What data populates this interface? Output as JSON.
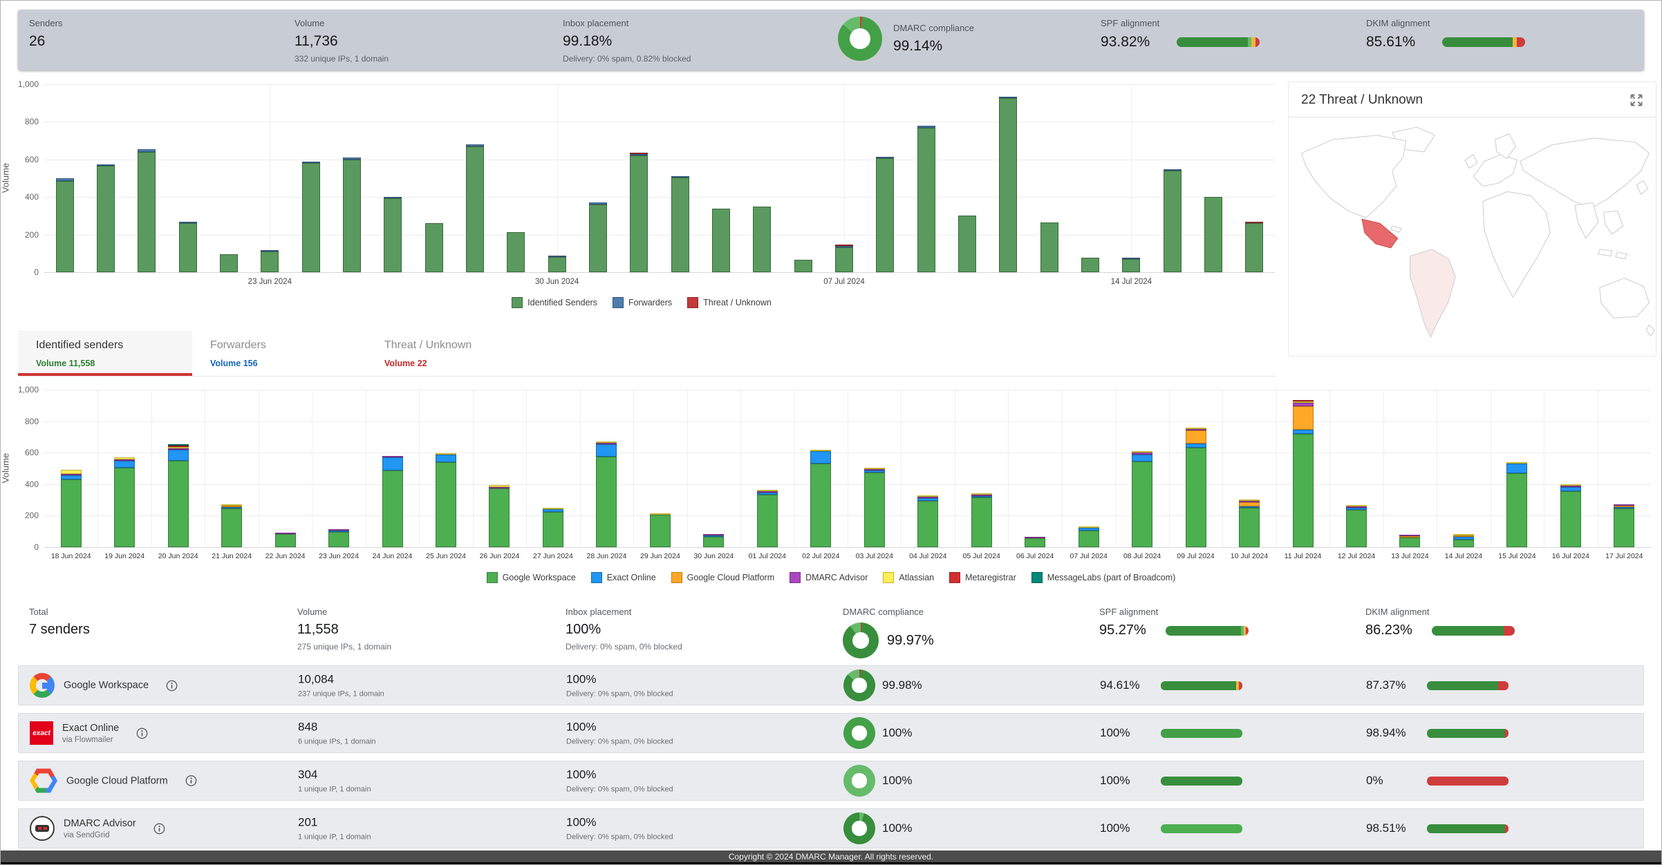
{
  "colors": {
    "green": "#388e3c",
    "green2": "#43a047",
    "lightgreen": "#66bb6a",
    "bright": "#4caf50",
    "yellow": "#f2b63c",
    "red": "#cf3c3c",
    "accent_red": "#cf3434"
  },
  "top_stats": {
    "senders": {
      "label": "Senders",
      "value": "26"
    },
    "volume": {
      "label": "Volume",
      "value": "11,736",
      "sub": "332 unique IPs, 1 domain"
    },
    "inbox": {
      "label": "Inbox placement",
      "value": "99.18%",
      "sub": "Delivery: 0% spam, 0.82% blocked"
    },
    "dmarc": {
      "label": "DMARC compliance",
      "value": "99.14%",
      "donut": [
        [
          "red",
          1.5
        ],
        [
          "green2",
          84.5
        ],
        [
          "lightgreen",
          14
        ]
      ]
    },
    "spf": {
      "label": "SPF alignment",
      "value": "93.82%",
      "bar": [
        [
          "green",
          86
        ],
        [
          "lightgreen",
          4
        ],
        [
          "yellow",
          5
        ],
        [
          "red",
          5
        ]
      ]
    },
    "dkim": {
      "label": "DKIM alignment",
      "value": "85.61%",
      "bar": [
        [
          "green",
          85
        ],
        [
          "yellow",
          5
        ],
        [
          "red",
          10
        ]
      ]
    }
  },
  "map_panel": {
    "title": "22 Threat / Unknown"
  },
  "tabs": [
    {
      "label": "Identified senders",
      "volume": "Volume 11,558",
      "tone": "green",
      "active": true
    },
    {
      "label": "Forwarders",
      "volume": "Volume 156",
      "tone": "blue",
      "active": false
    },
    {
      "label": "Threat / Unknown",
      "volume": "Volume 22",
      "tone": "red",
      "active": false
    }
  ],
  "chart_data": [
    {
      "type": "bar",
      "stacked": true,
      "title": "",
      "xlabel": "",
      "ylabel": "Volume",
      "ylim": [
        0,
        1000
      ],
      "yticks": [
        0,
        200,
        400,
        600,
        800,
        1000
      ],
      "grid": true,
      "legend_position": "bottom",
      "categories": [
        "18 Jun 2024",
        "19 Jun 2024",
        "20 Jun 2024",
        "21 Jun 2024",
        "22 Jun 2024",
        "23 Jun 2024",
        "24 Jun 2024",
        "25 Jun 2024",
        "26 Jun 2024",
        "27 Jun 2024",
        "28 Jun 2024",
        "29 Jun 2024",
        "30 Jun 2024",
        "01 Jul 2024",
        "02 Jul 2024",
        "03 Jul 2024",
        "04 Jul 2024",
        "05 Jul 2024",
        "06 Jul 2024",
        "07 Jul 2024",
        "08 Jul 2024",
        "09 Jul 2024",
        "10 Jul 2024",
        "11 Jul 2024",
        "12 Jul 2024",
        "13 Jul 2024",
        "14 Jul 2024",
        "15 Jul 2024",
        "16 Jul 2024",
        "17 Jul 2024"
      ],
      "xtick_label_indices": [
        5,
        12,
        19,
        26
      ],
      "xtick_labels_shown": [
        "23 Jun 2024",
        "30 Jun 2024",
        "07 Jul 2024",
        "14 Jul 2024"
      ],
      "series": [
        {
          "name": "Identified Senders",
          "color": "#5a9a5e",
          "edge": "#3a683e",
          "values": [
            485,
            565,
            640,
            262,
            95,
            112,
            580,
            600,
            395,
            260,
            670,
            215,
            82,
            362,
            620,
            502,
            340,
            350,
            65,
            132,
            605,
            770,
            300,
            928,
            265,
            78,
            70,
            540,
            400,
            262
          ]
        },
        {
          "name": "Forwarders",
          "color": "#4d7fae",
          "edge": "#31567b",
          "values": [
            15,
            10,
            15,
            4,
            0,
            6,
            10,
            12,
            7,
            0,
            10,
            0,
            6,
            8,
            5,
            8,
            0,
            0,
            0,
            5,
            7,
            8,
            0,
            7,
            0,
            0,
            5,
            8,
            0,
            0
          ]
        },
        {
          "name": "Threat / Unknown",
          "color": "#c23a3a",
          "edge": "#8c2525",
          "values": [
            0,
            0,
            0,
            0,
            0,
            0,
            0,
            0,
            0,
            0,
            0,
            0,
            0,
            0,
            8,
            0,
            0,
            0,
            0,
            6,
            0,
            0,
            0,
            0,
            0,
            0,
            0,
            0,
            0,
            8
          ]
        }
      ]
    },
    {
      "type": "bar",
      "stacked": true,
      "title": "",
      "xlabel": "",
      "ylabel": "Volume",
      "ylim": [
        0,
        1000
      ],
      "yticks": [
        0,
        200,
        400,
        600,
        800,
        1000
      ],
      "grid": true,
      "legend_position": "bottom",
      "categories": [
        "18 Jun 2024",
        "19 Jun 2024",
        "20 Jun 2024",
        "21 Jun 2024",
        "22 Jun 2024",
        "23 Jun 2024",
        "24 Jun 2024",
        "25 Jun 2024",
        "26 Jun 2024",
        "27 Jun 2024",
        "28 Jun 2024",
        "29 Jun 2024",
        "30 Jun 2024",
        "01 Jul 2024",
        "02 Jul 2024",
        "03 Jul 2024",
        "04 Jul 2024",
        "05 Jul 2024",
        "06 Jul 2024",
        "07 Jul 2024",
        "08 Jul 2024",
        "09 Jul 2024",
        "10 Jul 2024",
        "11 Jul 2024",
        "12 Jul 2024",
        "13 Jul 2024",
        "14 Jul 2024",
        "15 Jul 2024",
        "16 Jul 2024",
        "17 Jul 2024"
      ],
      "xtick_labels_shown": "all",
      "series": [
        {
          "name": "Google Workspace",
          "color": "#4caf50",
          "edge": "#377d3a",
          "values": [
            430,
            505,
            550,
            245,
            85,
            95,
            485,
            540,
            375,
            225,
            575,
            205,
            68,
            335,
            530,
            475,
            295,
            315,
            55,
            105,
            545,
            630,
            250,
            720,
            235,
            60,
            50,
            470,
            355,
            245
          ]
        },
        {
          "name": "Exact Online",
          "color": "#2196f3",
          "edge": "#1668a8",
          "values": [
            28,
            45,
            68,
            8,
            0,
            12,
            85,
            50,
            0,
            18,
            80,
            0,
            8,
            10,
            80,
            10,
            18,
            10,
            0,
            20,
            45,
            30,
            8,
            25,
            15,
            0,
            15,
            60,
            25,
            8
          ]
        },
        {
          "name": "Google Cloud Platform",
          "color": "#ffa726",
          "edge": "#c67b12",
          "values": [
            0,
            0,
            0,
            3,
            0,
            0,
            0,
            0,
            0,
            0,
            0,
            0,
            0,
            0,
            0,
            0,
            0,
            0,
            0,
            0,
            0,
            80,
            25,
            150,
            0,
            10,
            5,
            0,
            0,
            5
          ]
        },
        {
          "name": "DMARC Advisor",
          "color": "#ab47bc",
          "edge": "#7b2f8a",
          "values": [
            5,
            6,
            8,
            0,
            7,
            7,
            8,
            0,
            8,
            0,
            8,
            0,
            8,
            6,
            0,
            8,
            8,
            10,
            8,
            0,
            10,
            8,
            10,
            20,
            8,
            8,
            0,
            0,
            10,
            4
          ]
        },
        {
          "name": "Atlassian",
          "color": "#ffee58",
          "edge": "#c3b42c",
          "values": [
            25,
            10,
            8,
            4,
            0,
            0,
            0,
            8,
            10,
            5,
            5,
            4,
            0,
            12,
            10,
            5,
            6,
            5,
            0,
            8,
            4,
            8,
            8,
            4,
            5,
            0,
            2,
            8,
            6,
            0
          ]
        },
        {
          "name": "Metaregistrar",
          "color": "#d32f2f",
          "edge": "#9b1f1f",
          "values": [
            0,
            0,
            3,
            0,
            0,
            0,
            0,
            0,
            0,
            0,
            0,
            0,
            0,
            0,
            0,
            0,
            0,
            0,
            0,
            0,
            0,
            0,
            0,
            10,
            0,
            0,
            0,
            0,
            0,
            0
          ]
        },
        {
          "name": "MessageLabs (part of Broadcom)",
          "color": "#00897b",
          "edge": "#00594f",
          "values": [
            0,
            0,
            4,
            0,
            0,
            0,
            0,
            0,
            0,
            0,
            0,
            0,
            0,
            0,
            0,
            0,
            0,
            0,
            0,
            0,
            0,
            0,
            0,
            0,
            0,
            0,
            0,
            0,
            0,
            0
          ]
        }
      ]
    }
  ],
  "table": {
    "total": {
      "label_header": "Total",
      "label": "7 senders",
      "volume_header": "Volume",
      "volume": "11,558",
      "volume_sub": "275 unique IPs, 1 domain",
      "inbox_header": "Inbox placement",
      "inbox": "100%",
      "inbox_sub": "Delivery: 0% spam, 0% blocked",
      "dmarc_header": "DMARC compliance",
      "dmarc": "99.97%",
      "dmarc_donut": [
        [
          "red",
          1
        ],
        [
          "green",
          89
        ],
        [
          "lightgreen",
          10
        ]
      ],
      "spf_header": "SPF alignment",
      "spf": "95.27%",
      "spf_bar": [
        [
          "green",
          91
        ],
        [
          "lightgreen",
          3
        ],
        [
          "yellow",
          3
        ],
        [
          "red",
          3
        ]
      ],
      "dkim_header": "DKIM alignment",
      "dkim": "86.23%",
      "dkim_bar": [
        [
          "green",
          87
        ],
        [
          "red",
          13
        ]
      ]
    },
    "rows": [
      {
        "name": "Google Workspace",
        "via": "",
        "logo": "google",
        "logo_text": "",
        "volume": "10,084",
        "volume_sub": "237 unique IPs, 1 domain",
        "inbox": "100%",
        "inbox_sub": "Delivery: 0% spam, 0% blocked",
        "dmarc": "99.98%",
        "dmarc_donut": [
          [
            "red",
            1.5
          ],
          [
            "green",
            85.5
          ],
          [
            "lightgreen",
            13
          ]
        ],
        "spf": "94.61%",
        "spf_bar": [
          [
            "green",
            92
          ],
          [
            "yellow",
            4
          ],
          [
            "red",
            4
          ]
        ],
        "dkim": "87.37%",
        "dkim_bar": [
          [
            "green",
            87
          ],
          [
            "red",
            13
          ]
        ]
      },
      {
        "name": "Exact Online",
        "via": "via Flowmailer",
        "logo": "exact",
        "logo_text": "exact",
        "volume": "848",
        "volume_sub": "6 unique IPs, 1 domain",
        "inbox": "100%",
        "inbox_sub": "Delivery: 0% spam, 0% blocked",
        "dmarc": "100%",
        "dmarc_donut": [
          [
            "green2",
            100
          ]
        ],
        "spf": "100%",
        "spf_bar": [
          [
            "green2",
            100
          ]
        ],
        "dkim": "98.94%",
        "dkim_bar": [
          [
            "green",
            96
          ],
          [
            "red",
            4
          ]
        ]
      },
      {
        "name": "Google Cloud Platform",
        "via": "",
        "logo": "gcp",
        "logo_text": "",
        "volume": "304",
        "volume_sub": "1 unique IP, 1 domain",
        "inbox": "100%",
        "inbox_sub": "Delivery: 0% spam, 0% blocked",
        "dmarc": "100%",
        "dmarc_donut": [
          [
            "lightgreen",
            100
          ]
        ],
        "spf": "100%",
        "spf_bar": [
          [
            "green",
            100
          ]
        ],
        "dkim": "0%",
        "dkim_bar": [
          [
            "red",
            100
          ]
        ]
      },
      {
        "name": "DMARC Advisor",
        "via": "via SendGrid",
        "logo": "advisor",
        "logo_text": "",
        "volume": "201",
        "volume_sub": "1 unique IP, 1 domain",
        "inbox": "100%",
        "inbox_sub": "Delivery: 0% spam, 0% blocked",
        "dmarc": "100%",
        "dmarc_donut": [
          [
            "lightgreen",
            5
          ],
          [
            "green",
            95
          ]
        ],
        "spf": "100%",
        "spf_bar": [
          [
            "bright",
            100
          ]
        ],
        "dkim": "98.51%",
        "dkim_bar": [
          [
            "green",
            96
          ],
          [
            "red",
            4
          ]
        ]
      }
    ]
  },
  "footer": {
    "text": "Copyright © 2024 DMARC Manager. All rights reserved."
  }
}
